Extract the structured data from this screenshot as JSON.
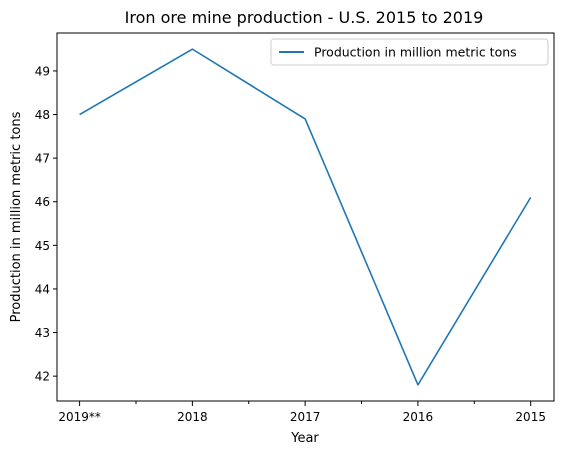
{
  "chart_data": {
    "type": "line",
    "title": "Iron ore mine production - U.S. 2015 to 2019",
    "xlabel": "Year",
    "ylabel": "Production in million metric tons",
    "categories": [
      "2019**",
      "2018",
      "2017",
      "2016",
      "2015"
    ],
    "series": [
      {
        "name": "Production in million metric tons",
        "values": [
          48.0,
          49.5,
          47.9,
          41.8,
          46.1
        ],
        "color": "#1f77b4"
      }
    ],
    "ylim": [
      41.43,
      49.87
    ],
    "yticks": [
      42,
      43,
      44,
      45,
      46,
      47,
      48,
      49
    ],
    "grid": false,
    "legend": "upper right"
  }
}
